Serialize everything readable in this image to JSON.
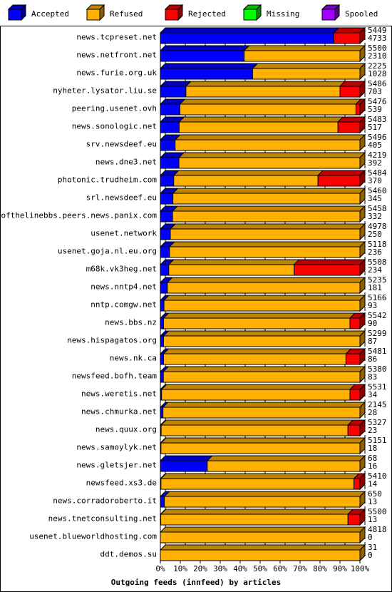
{
  "legend": [
    {
      "label": "Accepted",
      "color": "#0000ff"
    },
    {
      "label": "Refused",
      "color": "#ffb000"
    },
    {
      "label": "Rejected",
      "color": "#ff0000"
    },
    {
      "label": "Missing",
      "color": "#00ff00"
    },
    {
      "label": "Spooled",
      "color": "#a000ff"
    }
  ],
  "chart_data": {
    "type": "bar",
    "orientation": "horizontal",
    "stacked": true,
    "title": "Outgoing feeds (innfeed) by articles",
    "xlabel": "",
    "ylabel": "",
    "xlim": [
      0,
      100
    ],
    "x_ticks": [
      "0%",
      "10%",
      "20%",
      "30%",
      "40%",
      "50%",
      "60%",
      "70%",
      "80%",
      "90%",
      "100%"
    ],
    "grid": true,
    "legend_position": "top",
    "categories": [
      "news.tcpreset.net",
      "news.netfront.net",
      "news.furie.org.uk",
      "nyheter.lysator.liu.se",
      "peering.usenet.ovh",
      "news.sonologic.net",
      "srv.newsdeef.eu",
      "news.dne3.net",
      "photonic.trudheim.com",
      "srl.newsdeef.eu",
      "endofthelinebbs.peers.news.panix.com",
      "usenet.network",
      "usenet.goja.nl.eu.org",
      "m68k.vk3heg.net",
      "news.nntp4.net",
      "nntp.comgw.net",
      "news.bbs.nz",
      "news.hispagatos.org",
      "news.nk.ca",
      "newsfeed.bofh.team",
      "news.weretis.net",
      "news.chmurka.net",
      "news.quux.org",
      "news.samoylyk.net",
      "news.gletsjer.net",
      "newsfeed.xs3.de",
      "news.corradoroberto.it",
      "news.tnetconsulting.net",
      "usenet.blueworldhosting.com",
      "ddt.demos.su"
    ],
    "offered": [
      5449,
      5500,
      2225,
      5486,
      5476,
      5483,
      5496,
      4219,
      5484,
      5460,
      5458,
      4978,
      5118,
      5508,
      5235,
      5166,
      5542,
      5299,
      5481,
      5380,
      5531,
      2145,
      5327,
      5151,
      68,
      5410,
      650,
      5500,
      4818,
      31
    ],
    "accepted_count": [
      4733,
      2310,
      1028,
      703,
      539,
      517,
      405,
      392,
      370,
      345,
      332,
      250,
      236,
      234,
      181,
      93,
      90,
      87,
      86,
      83,
      34,
      28,
      23,
      18,
      16,
      14,
      13,
      13,
      0,
      0
    ],
    "series": [
      {
        "name": "Accepted",
        "color": "#0000ff",
        "values": [
          86.9,
          42.0,
          46.2,
          12.8,
          9.8,
          9.4,
          7.4,
          9.3,
          6.7,
          6.3,
          6.1,
          5.0,
          4.6,
          4.2,
          3.5,
          1.8,
          1.6,
          1.6,
          1.6,
          1.5,
          0.6,
          1.3,
          0.4,
          0.3,
          23.5,
          0.3,
          2.0,
          0.2,
          0.0,
          0.0
        ]
      },
      {
        "name": "Refused",
        "color": "#ffb000",
        "values": [
          0,
          58.0,
          53.8,
          77.2,
          88.2,
          79.6,
          92.6,
          90.7,
          72.3,
          93.7,
          93.9,
          95.0,
          95.4,
          62.8,
          96.5,
          98.2,
          93.4,
          98.4,
          91.4,
          98.5,
          94.4,
          98.7,
          93.6,
          99.7,
          76.5,
          96.7,
          98.0,
          93.8,
          100.0,
          100.0
        ]
      },
      {
        "name": "Rejected",
        "color": "#ff0000",
        "values": [
          13.1,
          0,
          0,
          10.0,
          2.0,
          11.0,
          0,
          0,
          21.0,
          0,
          0,
          0,
          0,
          33.0,
          0,
          0,
          5.0,
          0,
          7.0,
          0,
          5.0,
          0,
          6.0,
          0,
          0,
          3.0,
          0,
          6.0,
          0,
          0
        ]
      },
      {
        "name": "Missing",
        "color": "#00ff00",
        "values": [
          0,
          0,
          0,
          0,
          0,
          0,
          0,
          0,
          0,
          0,
          0,
          0,
          0,
          0,
          0,
          0,
          0,
          0,
          0,
          0,
          0,
          0,
          0,
          0,
          0,
          0,
          0,
          0,
          0,
          0
        ]
      },
      {
        "name": "Spooled",
        "color": "#a000ff",
        "values": [
          0,
          0,
          0,
          0,
          0,
          0,
          0,
          0,
          0,
          0,
          0,
          0,
          0,
          0,
          0,
          0,
          0,
          0,
          0,
          0,
          0,
          0,
          0,
          0,
          0,
          0,
          0,
          0,
          0,
          0
        ]
      }
    ]
  }
}
